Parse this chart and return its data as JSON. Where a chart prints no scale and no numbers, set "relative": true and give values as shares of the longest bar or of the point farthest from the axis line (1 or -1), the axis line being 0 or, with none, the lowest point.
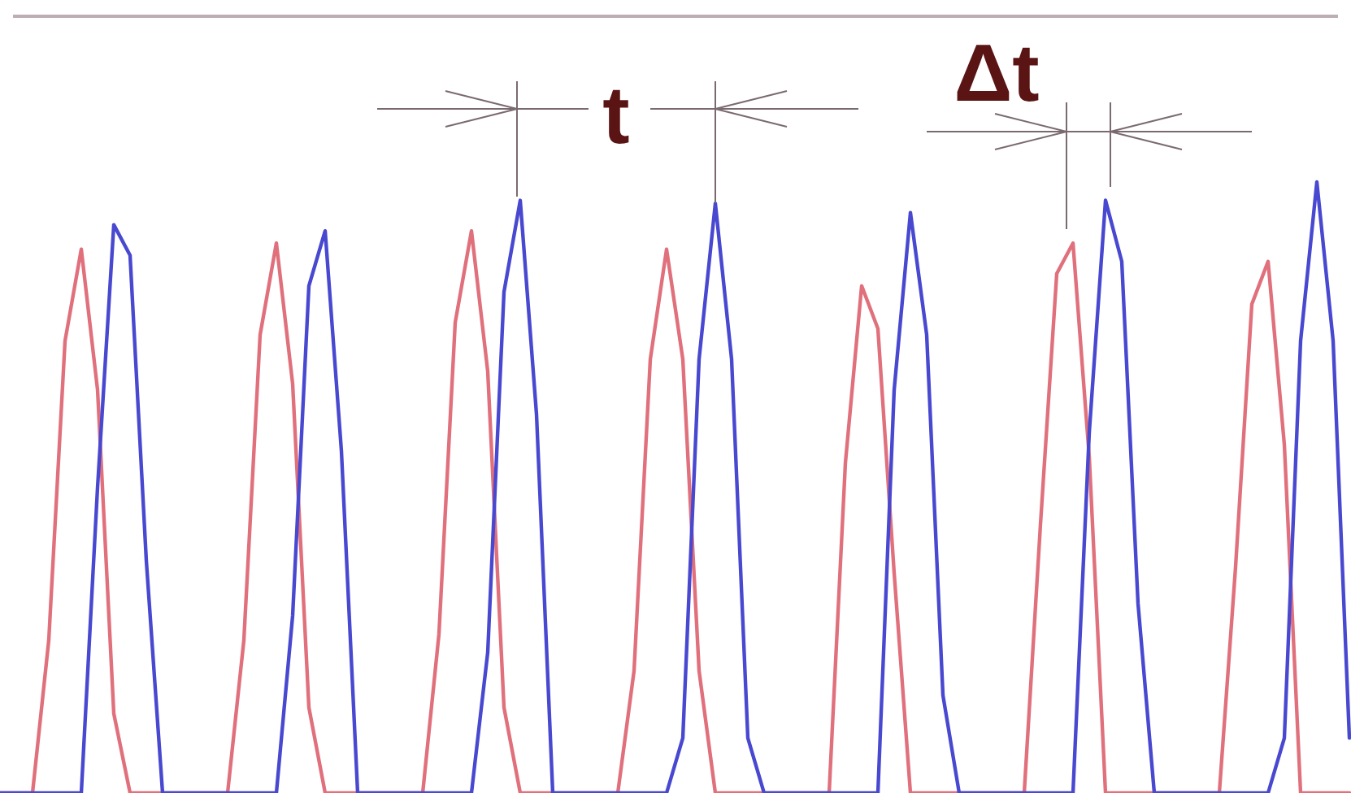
{
  "chart_data": {
    "type": "line",
    "relative": true,
    "categories": [
      null,
      null,
      null,
      null,
      null,
      null,
      null,
      null,
      null,
      null,
      null,
      null,
      null,
      null,
      null,
      null,
      null,
      null,
      null,
      null,
      null,
      null,
      null,
      null,
      null,
      null,
      null,
      null,
      null,
      null,
      null,
      null,
      null,
      null,
      null,
      null,
      null,
      null,
      null,
      null,
      null,
      null,
      null,
      null,
      null,
      null,
      null,
      null,
      null,
      null,
      null,
      null,
      null,
      null,
      null,
      null,
      null,
      null,
      null,
      null,
      null,
      null,
      null,
      null,
      null,
      null,
      null,
      null,
      null,
      null,
      null,
      null,
      null,
      null,
      null,
      null,
      null,
      null,
      null,
      null,
      null,
      null,
      null,
      null
    ],
    "series": [
      {
        "color": "#e0707c",
        "values": [
          0,
          0,
          0,
          0.25,
          0.74,
          0.89,
          0.66,
          0.13,
          0,
          0,
          0,
          0,
          0,
          0,
          0,
          0.25,
          0.75,
          0.9,
          0.67,
          0.14,
          0,
          0,
          0,
          0,
          0,
          0,
          0,
          0.26,
          0.77,
          0.92,
          0.69,
          0.14,
          0,
          0,
          0,
          0,
          0,
          0,
          0,
          0.2,
          0.71,
          0.89,
          0.71,
          0.2,
          0,
          0,
          0,
          0,
          0,
          0,
          0,
          0,
          0.54,
          0.83,
          0.76,
          0.36,
          0,
          0,
          0,
          0,
          0,
          0,
          0,
          0,
          0.44,
          0.85,
          0.9,
          0.55,
          0,
          0,
          0,
          0,
          0,
          0,
          0,
          0,
          0.37,
          0.8,
          0.87,
          0.57,
          0,
          0,
          0,
          0
        ]
      },
      {
        "color": "#4848d0",
        "values": [
          0,
          0,
          0,
          0,
          0,
          0,
          0.5,
          0.93,
          0.88,
          0.38,
          0,
          0,
          0,
          0,
          0,
          0,
          0,
          0,
          0.29,
          0.83,
          0.92,
          0.56,
          0,
          0,
          0,
          0,
          0,
          0,
          0,
          0,
          0.23,
          0.82,
          0.97,
          0.62,
          0,
          0,
          0,
          0,
          0,
          0,
          0,
          0,
          0.09,
          0.71,
          0.965,
          0.71,
          0.09,
          0,
          0,
          0,
          0,
          0,
          0,
          0,
          0,
          0.66,
          0.95,
          0.75,
          0.16,
          0,
          0,
          0,
          0,
          0,
          0,
          0,
          0,
          0.59,
          0.97,
          0.87,
          0.31,
          0,
          0,
          0,
          0,
          0,
          0,
          0,
          0,
          0.09,
          0.74,
          1,
          0.74,
          0.09
        ]
      }
    ],
    "annotations": [
      "t",
      "Δt"
    ]
  }
}
